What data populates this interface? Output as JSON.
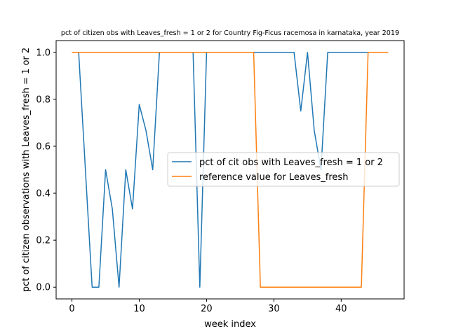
{
  "chart_data": {
    "type": "line",
    "title": "pct of citizen obs with Leaves_fresh = 1 or 2 for Country Fig-Ficus racemosa in karnataka, year 2019",
    "xlabel": "week index",
    "ylabel": "pct of citizen observations with Leaves_fresh = 1 or 2",
    "xlim": [
      -2.35,
      49.35
    ],
    "ylim": [
      -0.05,
      1.05
    ],
    "xticks": [
      0,
      10,
      20,
      30,
      40
    ],
    "xtick_labels": [
      "0",
      "10",
      "20",
      "30",
      "40"
    ],
    "yticks": [
      0.0,
      0.2,
      0.4,
      0.6,
      0.8,
      1.0
    ],
    "ytick_labels": [
      "0.0",
      "0.2",
      "0.4",
      "0.6",
      "0.8",
      "1.0"
    ],
    "grid": false,
    "legend_position": "center-right",
    "x": [
      0,
      1,
      2,
      3,
      4,
      5,
      6,
      7,
      8,
      9,
      10,
      11,
      12,
      13,
      14,
      15,
      16,
      17,
      18,
      19,
      20,
      21,
      22,
      23,
      24,
      25,
      26,
      27,
      28,
      29,
      30,
      31,
      32,
      33,
      34,
      35,
      36,
      37,
      38,
      39,
      40,
      41,
      42,
      43,
      44,
      45,
      46,
      47
    ],
    "series": [
      {
        "name": "pct of cit obs with Leaves_fresh = 1 or 2",
        "color": "#1f77b4",
        "values": [
          1,
          1,
          0.5,
          0,
          0,
          0.5,
          0.333,
          0,
          0.5,
          0.333,
          0.778,
          0.667,
          0.5,
          1,
          1,
          1,
          1,
          1,
          1,
          0,
          1,
          1,
          1,
          1,
          1,
          1,
          1,
          1,
          1,
          1,
          1,
          1,
          1,
          1,
          0.75,
          1,
          0.667,
          0.5,
          1,
          1,
          1,
          1,
          1,
          1,
          1,
          1,
          1,
          1
        ]
      },
      {
        "name": "reference value for Leaves_fresh",
        "color": "#ff7f0e",
        "values": [
          1,
          1,
          1,
          1,
          1,
          1,
          1,
          1,
          1,
          1,
          1,
          1,
          1,
          1,
          1,
          1,
          1,
          1,
          1,
          1,
          1,
          1,
          1,
          1,
          1,
          1,
          1,
          1,
          0,
          0,
          0,
          0,
          0,
          0,
          0,
          0,
          0,
          0,
          0,
          0,
          0,
          0,
          0,
          0,
          1,
          1,
          1,
          1
        ]
      }
    ]
  }
}
